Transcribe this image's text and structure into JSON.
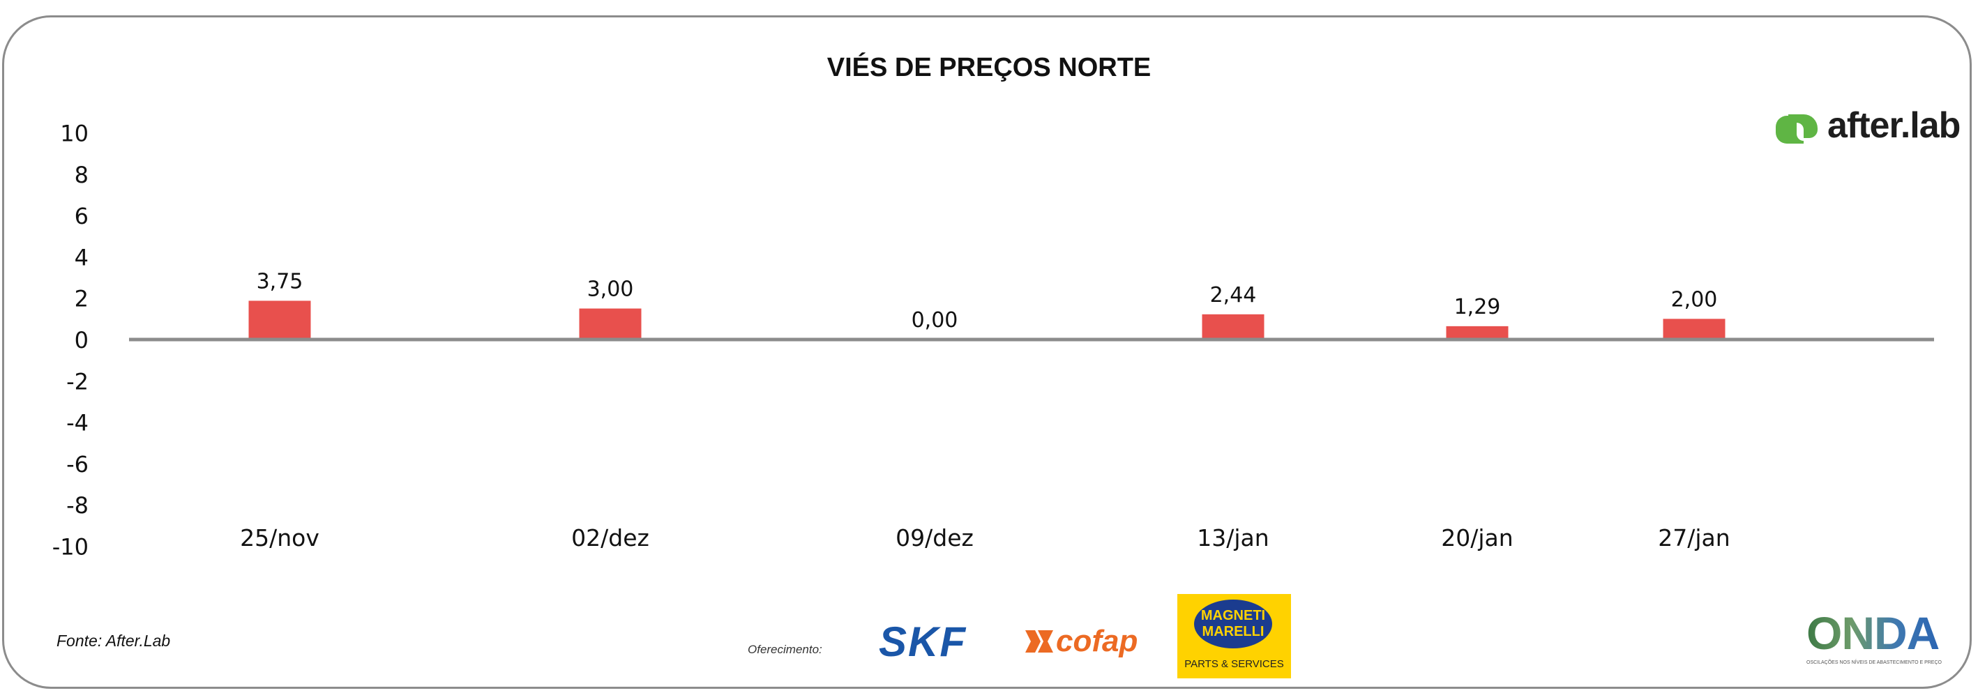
{
  "chart_data": {
    "type": "bar",
    "title": "VIÉS DE PREÇOS NORTE",
    "categories": [
      "25/nov",
      "02/dez",
      "09/dez",
      "13/jan",
      "20/jan",
      "27/jan"
    ],
    "values": [
      3.75,
      3.0,
      0.0,
      2.44,
      1.29,
      2.0
    ],
    "data_labels": [
      "3,75",
      "3,00",
      "0,00",
      "2,44",
      "1,29",
      "2,00"
    ],
    "yticks": [
      "10",
      "8",
      "6",
      "4",
      "2",
      "0",
      "-2",
      "-4",
      "-6",
      "-8",
      "-10"
    ],
    "ylim": [
      -10,
      10
    ],
    "xlabel": "",
    "ylabel": "",
    "grid": false,
    "bar_color": "#e8504d"
  },
  "branding": {
    "afterlab": "after.lab",
    "source": "Fonte: After.Lab",
    "sponsor_label": "Oferecimento:",
    "sponsors": [
      "SKF",
      "cofap",
      "MAGNETI MARELLI",
      "PARTS & SERVICES"
    ],
    "onda": "ONDA",
    "onda_sub": "OSCILAÇÕES NOS NÍVEIS DE ABASTECIMENTO E PREÇO"
  }
}
